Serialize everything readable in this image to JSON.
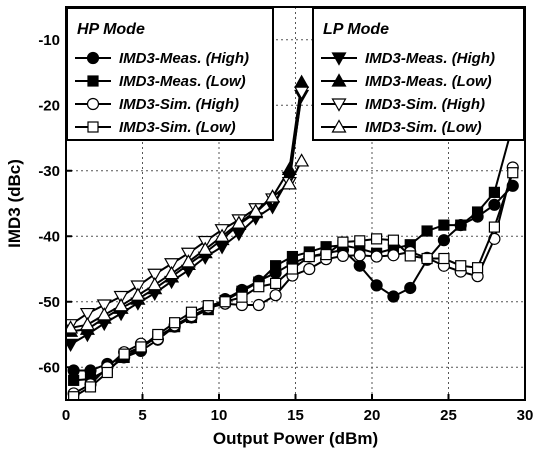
{
  "chart_data": {
    "type": "line",
    "xlabel": "Output Power (dBm)",
    "ylabel": "IMD3 (dBc)",
    "xlim": [
      0,
      30
    ],
    "ylim": [
      -65,
      -5
    ],
    "xticks": [
      0,
      5,
      10,
      15,
      20,
      25,
      30
    ],
    "yticks": [
      -60,
      -50,
      -40,
      -30,
      -20,
      -10
    ],
    "grid": true,
    "legends": [
      {
        "title": "HP Mode",
        "placement": "top-left",
        "entries": [
          "IMD3-Meas. (High)",
          "IMD3-Meas. (Low)",
          "IMD3-Sim. (High)",
          "IMD3-Sim. (Low)"
        ]
      },
      {
        "title": "LP Mode",
        "placement": "top-right",
        "entries": [
          "IMD3-Meas. (High)",
          "IMD3-Meas. (Low)",
          "IMD3-Sim. (High)",
          "IMD3-Sim. (Low)"
        ]
      }
    ],
    "series": [
      {
        "group": "HP Mode",
        "name": "IMD3-Meas. (High)",
        "marker": "circle",
        "fill": "#000000",
        "x": [
          0.5,
          1.6,
          2.7,
          3.8,
          4.9,
          6.0,
          7.1,
          8.2,
          9.3,
          10.4,
          11.5,
          12.6,
          13.7,
          14.8,
          15.9,
          17.0,
          18.1,
          19.2,
          20.3,
          21.4,
          22.5,
          23.6,
          24.7,
          25.8,
          26.9,
          28.0,
          29.2
        ],
        "y": [
          -60.5,
          -60.5,
          -59.5,
          -58.5,
          -57.5,
          -55.8,
          -53.8,
          -52.4,
          -51.0,
          -49.6,
          -48.2,
          -46.8,
          -45.6,
          -44.1,
          -43.1,
          -42.6,
          -42.1,
          -44.5,
          -47.5,
          -49.2,
          -47.9,
          -43.6,
          -40.6,
          -38.3,
          -37.0,
          -35.2,
          -32.3
        ]
      },
      {
        "group": "HP Mode",
        "name": "IMD3-Meas. (Low)",
        "marker": "square",
        "fill": "#000000",
        "x": [
          0.5,
          1.6,
          2.7,
          3.8,
          4.9,
          6.0,
          7.1,
          8.2,
          9.3,
          10.4,
          11.5,
          12.6,
          13.7,
          14.8,
          15.9,
          17.0,
          18.1,
          19.2,
          20.3,
          21.4,
          22.5,
          23.6,
          24.7,
          25.8,
          26.9,
          28.0,
          29.2
        ],
        "y": [
          -62.0,
          -61.8,
          -60.4,
          -58.5,
          -57.0,
          -55.3,
          -53.8,
          -52.4,
          -51.2,
          -49.8,
          -48.4,
          -47.0,
          -44.5,
          -43.1,
          -42.4,
          -41.6,
          -41.4,
          -41.9,
          -42.6,
          -41.9,
          -41.3,
          -39.2,
          -38.3,
          -38.3,
          -36.3,
          -33.3,
          -23.0
        ]
      },
      {
        "group": "HP Mode",
        "name": "IMD3-Sim. (High)",
        "marker": "circle",
        "fill": "#ffffff",
        "x": [
          0.5,
          1.6,
          2.7,
          3.8,
          4.9,
          6.0,
          7.1,
          8.2,
          9.3,
          10.4,
          11.5,
          12.6,
          13.7,
          14.8,
          15.9,
          17.0,
          18.1,
          19.2,
          20.3,
          21.4,
          22.5,
          23.6,
          24.7,
          25.8,
          26.9,
          28.0,
          29.2
        ],
        "y": [
          -64.0,
          -62.6,
          -60.0,
          -57.7,
          -56.4,
          -55.7,
          -53.6,
          -52.2,
          -50.9,
          -50.3,
          -50.5,
          -50.5,
          -49.0,
          -46.0,
          -45.0,
          -43.5,
          -43.0,
          -42.9,
          -43.1,
          -42.9,
          -42.4,
          -43.3,
          -44.5,
          -45.4,
          -46.1,
          -40.4,
          -29.5
        ]
      },
      {
        "group": "HP Mode",
        "name": "IMD3-Sim. (Low)",
        "marker": "square",
        "fill": "#ffffff",
        "x": [
          0.5,
          1.6,
          2.7,
          3.8,
          4.9,
          6.0,
          7.1,
          8.2,
          9.3,
          10.4,
          11.5,
          12.6,
          13.7,
          14.8,
          15.9,
          17.0,
          18.1,
          19.2,
          20.3,
          21.4,
          22.5,
          23.6,
          24.7,
          25.8,
          26.9,
          28.0,
          29.2
        ],
        "y": [
          -64.5,
          -63.0,
          -60.8,
          -58.0,
          -56.9,
          -55.0,
          -53.2,
          -51.6,
          -50.6,
          -50.0,
          -49.3,
          -47.7,
          -47.2,
          -45.0,
          -43.1,
          -42.8,
          -40.9,
          -40.7,
          -40.4,
          -40.6,
          -43.0,
          -43.4,
          -43.4,
          -44.5,
          -44.8,
          -38.6,
          -30.3
        ]
      },
      {
        "group": "LP Mode",
        "name": "IMD3-Meas. (High)",
        "marker": "tri-down",
        "fill": "#000000",
        "x": [
          0.3,
          1.4,
          2.5,
          3.6,
          4.7,
          5.8,
          6.9,
          8.0,
          9.1,
          10.2,
          11.3,
          12.4,
          13.5,
          14.6,
          15.4
        ],
        "y": [
          -56.5,
          -55.0,
          -53.3,
          -51.8,
          -50.2,
          -48.7,
          -46.9,
          -45.2,
          -43.2,
          -41.6,
          -39.6,
          -37.2,
          -35.5,
          -31.0,
          -18.5
        ]
      },
      {
        "group": "LP Mode",
        "name": "IMD3-Meas. (Low)",
        "marker": "tri-up",
        "fill": "#000000",
        "x": [
          0.3,
          1.4,
          2.5,
          3.6,
          4.7,
          5.8,
          6.9,
          8.0,
          9.1,
          10.2,
          11.3,
          12.4,
          13.5,
          14.6,
          15.4
        ],
        "y": [
          -54.5,
          -54.2,
          -52.5,
          -51.0,
          -49.6,
          -48.0,
          -46.2,
          -44.3,
          -42.5,
          -40.5,
          -38.2,
          -36.4,
          -34.0,
          -29.8,
          -16.5
        ]
      },
      {
        "group": "LP Mode",
        "name": "IMD3-Sim. (High)",
        "marker": "tri-down",
        "fill": "#ffffff",
        "x": [
          0.3,
          1.4,
          2.5,
          3.6,
          4.7,
          5.8,
          6.9,
          8.0,
          9.1,
          10.2,
          11.3,
          12.4,
          13.5,
          14.6,
          15.4
        ],
        "y": [
          -53.5,
          -51.8,
          -50.5,
          -49.2,
          -47.6,
          -45.8,
          -44.2,
          -42.6,
          -40.8,
          -39.0,
          -37.5,
          -35.8,
          -34.3,
          -31.8,
          -18.0
        ]
      },
      {
        "group": "LP Mode",
        "name": "IMD3-Sim. (Low)",
        "marker": "tri-up",
        "fill": "#ffffff",
        "x": [
          0.3,
          1.4,
          2.5,
          3.6,
          4.7,
          5.8,
          6.9,
          8.0,
          9.1,
          10.2,
          11.3,
          12.4,
          13.5,
          14.6,
          15.4
        ],
        "y": [
          -54.0,
          -53.5,
          -52.0,
          -50.6,
          -49.0,
          -47.4,
          -45.7,
          -43.9,
          -42.0,
          -40.0,
          -38.0,
          -36.2,
          -34.0,
          -32.0,
          -28.5
        ]
      }
    ]
  }
}
